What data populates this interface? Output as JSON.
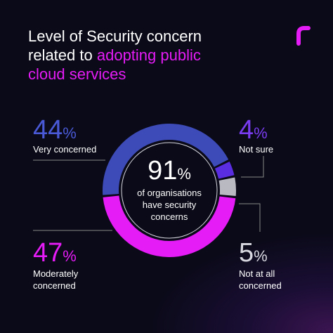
{
  "chart_data": {
    "type": "donut",
    "title": "Level of Security concern related to",
    "title_highlight": "adopting public cloud services",
    "categories": [
      "Very concerned",
      "Not sure",
      "Not at all concerned",
      "Moderately concerned"
    ],
    "values": [
      44,
      4,
      5,
      47
    ],
    "value_labels": [
      "44%",
      "4%",
      "5%",
      "47%"
    ],
    "colors": [
      "#3d4bb8",
      "#5a2ee0",
      "#b9b9c2",
      "#e51cf5"
    ],
    "center_value": {
      "value": 91,
      "label": "91%"
    },
    "center_text": "of organisations have security concerns"
  }
}
